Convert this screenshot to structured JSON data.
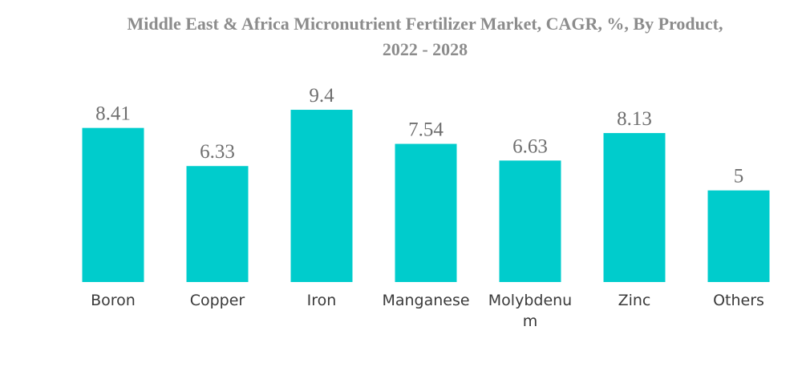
{
  "chart_data": {
    "type": "bar",
    "title": "Middle East & Africa Micronutrient Fertilizer Market, CAGR, %, By Product, 2022 - 2028",
    "title_lines": [
      "Middle East & Africa Micronutrient Fertilizer Market, CAGR, %, By Product,",
      "2022 - 2028"
    ],
    "categories": [
      "Boron",
      "Copper",
      "Iron",
      "Manganese",
      "Molybdenum",
      "Zinc",
      "Others"
    ],
    "category_display": [
      [
        "Boron"
      ],
      [
        "Copper"
      ],
      [
        "Iron"
      ],
      [
        "Manganese"
      ],
      [
        "Molybdenu",
        "m"
      ],
      [
        "Zinc"
      ],
      [
        "Others"
      ]
    ],
    "values": [
      8.41,
      6.33,
      9.4,
      7.54,
      6.63,
      8.13,
      5
    ],
    "value_labels": [
      "8.41",
      "6.33",
      "9.4",
      "7.54",
      "6.63",
      "8.13",
      "5"
    ],
    "ylim": [
      0,
      10
    ],
    "grid": false,
    "legend": "none",
    "bar_color": "#00cccc"
  }
}
